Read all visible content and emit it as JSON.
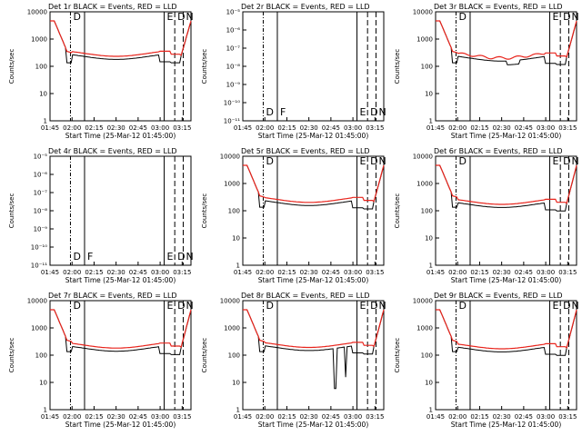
{
  "chart_data": {
    "type": "line",
    "layout": "3x3 grid",
    "x_ticks": [
      "01:45",
      "02:00",
      "02:15",
      "02:30",
      "02:45",
      "03:00",
      "03:15"
    ],
    "x_label": "Start Time (25-Mar-12 01:45:00)",
    "y_label": "Counts/sec",
    "y_scale": "log",
    "y_ticks_counts": [
      "1",
      "10",
      "100",
      "1000",
      "10000"
    ],
    "y_ticks_tiny": [
      "10⁻¹¹",
      "10⁻¹⁰",
      "10⁻⁹",
      "10⁻⁸",
      "10⁻⁷",
      "10⁻⁶",
      "10⁻⁵"
    ],
    "series_legend": {
      "black": "Events",
      "red": "LLD",
      "black_color": "#000000",
      "red_color": "#e8241c"
    },
    "vertical_markers": [
      {
        "type": "dash-dot",
        "label": "D"
      },
      {
        "type": "solid",
        "label": "F"
      },
      {
        "type": "solid",
        "label": "E"
      },
      {
        "type": "dashed",
        "label": "D"
      },
      {
        "type": "dashed",
        "label": "N"
      }
    ],
    "panels": [
      {
        "title": "Det 1r  BLACK = Events, RED = LLD",
        "data": "counts",
        "markers_shown": [
          "D",
          "E",
          "N"
        ]
      },
      {
        "title": "Det 2r  BLACK = Events, RED = LLD",
        "data": "none",
        "markers_shown": [
          "D",
          "F",
          "E",
          "N"
        ]
      },
      {
        "title": "Det 3r  BLACK = Events, RED = LLD",
        "data": "counts",
        "markers_shown": [
          "D",
          "E",
          "N"
        ]
      },
      {
        "title": "Det 4r  BLACK = Events, RED = LLD",
        "data": "none",
        "markers_shown": [
          "D",
          "F",
          "E",
          "N"
        ]
      },
      {
        "title": "Det 5r  BLACK = Events, RED = LLD",
        "data": "counts",
        "markers_shown": [
          "D",
          "E",
          "N"
        ]
      },
      {
        "title": "Det 6r  BLACK = Events, RED = LLD",
        "data": "counts",
        "markers_shown": [
          "D",
          "E",
          "N"
        ]
      },
      {
        "title": "Det 7r  BLACK = Events, RED = LLD",
        "data": "counts",
        "markers_shown": [
          "D",
          "E",
          "N"
        ]
      },
      {
        "title": "Det 8r  BLACK = Events, RED = LLD",
        "data": "counts",
        "markers_shown": [
          "D",
          "E",
          "N"
        ]
      },
      {
        "title": "Det 9r  BLACK = Events, RED = LLD",
        "data": "counts",
        "markers_shown": [
          "D",
          "E",
          "N"
        ]
      }
    ]
  }
}
